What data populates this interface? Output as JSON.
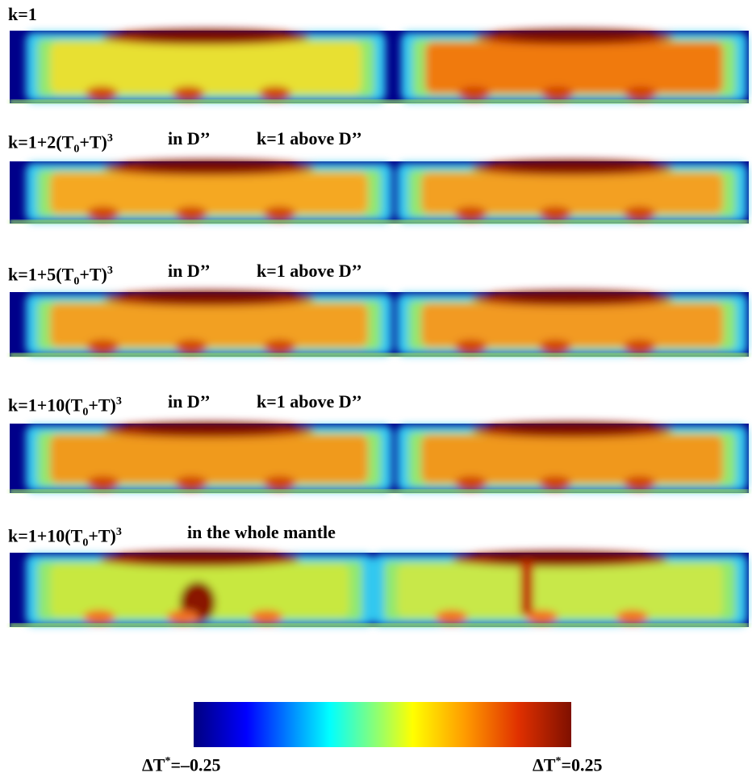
{
  "panels": [
    {
      "formula": {
        "base": "k=1"
      }
    },
    {
      "formula": {
        "base": "k=1+2(T",
        "sub": "0",
        "mid": "+T)",
        "sup": "3"
      },
      "region": "in D’’",
      "above": "k=1 above D’’"
    },
    {
      "formula": {
        "base": "k=1+5(T",
        "sub": "0",
        "mid": "+T)",
        "sup": "3"
      },
      "region": "in D’’",
      "above": "k=1 above D’’"
    },
    {
      "formula": {
        "base": "k=1+10(T",
        "sub": "0",
        "mid": "+T)",
        "sup": "3"
      },
      "region": "in D’’",
      "above": "k=1 above D’’"
    },
    {
      "formula": {
        "base": "k=1+10(T",
        "sub": "0",
        "mid": "+T)",
        "sup": "3"
      },
      "region": "in the whole mantle"
    }
  ],
  "colorbar": {
    "min_label": {
      "base": "ΔT",
      "sup": "*",
      "rest": "=–0.25"
    },
    "max_label": {
      "base": "ΔT",
      "sup": "*",
      "rest": "=0.25"
    }
  }
}
